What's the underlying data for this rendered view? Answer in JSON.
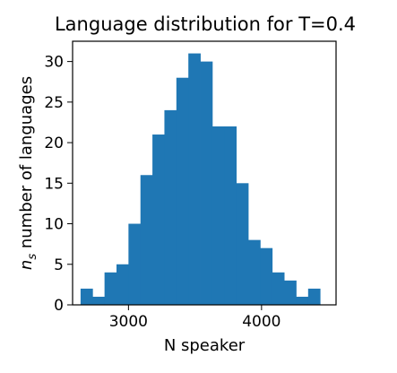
{
  "chart_data": {
    "type": "bar",
    "title": "Language distribution for T=0.4",
    "xlabel": "N speaker",
    "ylabel_math": "n",
    "ylabel_sub": "s",
    "ylabel_rest": " number of languages",
    "xlim": [
      2580,
      4560
    ],
    "ylim": [
      0,
      32.5
    ],
    "x_ticks": [
      {
        "value": 3000,
        "label": "3000"
      },
      {
        "value": 4000,
        "label": "4000"
      }
    ],
    "y_ticks": [
      {
        "value": 0,
        "label": "0"
      },
      {
        "value": 5,
        "label": "5"
      },
      {
        "value": 10,
        "label": "10"
      },
      {
        "value": 15,
        "label": "15"
      },
      {
        "value": 20,
        "label": "20"
      },
      {
        "value": 25,
        "label": "25"
      },
      {
        "value": 30,
        "label": "30"
      }
    ],
    "bin_edges": [
      2640,
      2730,
      2820,
      2910,
      3000,
      3090,
      3180,
      3270,
      3360,
      3450,
      3540,
      3630,
      3720,
      3810,
      3900,
      3990,
      4080,
      4170,
      4260,
      4350,
      4440
    ],
    "values": [
      2,
      1,
      4,
      5,
      10,
      16,
      21,
      24,
      28,
      31,
      30,
      22,
      22,
      15,
      8,
      7,
      4,
      3,
      1,
      2
    ],
    "color": "#1f77b4"
  }
}
